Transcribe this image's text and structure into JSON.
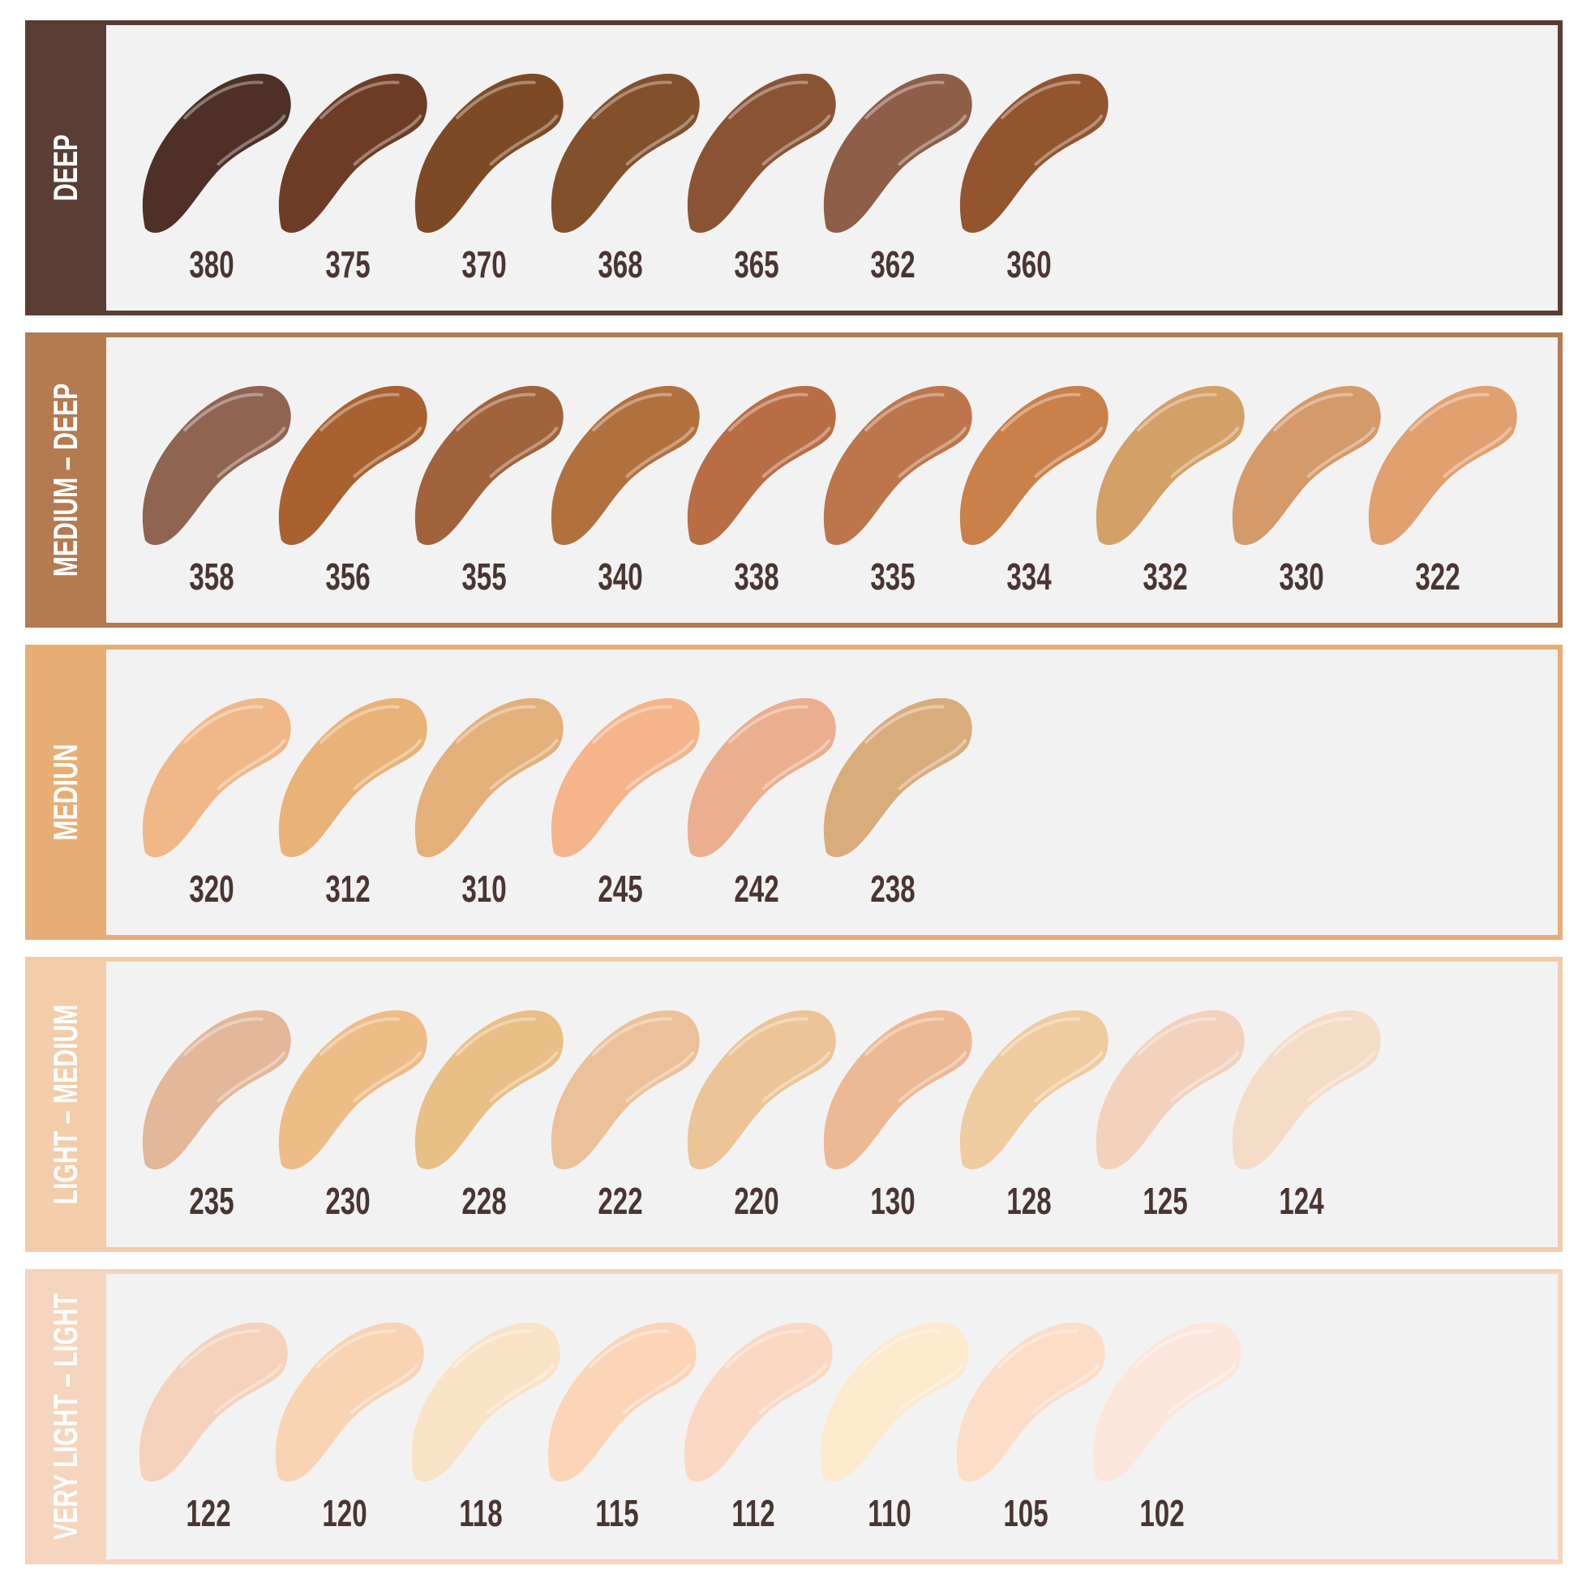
{
  "groups": [
    {
      "label": "DEEP",
      "color": "#5a3e33",
      "shades": [
        {
          "code": "380",
          "color": "#4e3026"
        },
        {
          "code": "375",
          "color": "#6e3c26"
        },
        {
          "code": "370",
          "color": "#7e4a26"
        },
        {
          "code": "368",
          "color": "#83502c"
        },
        {
          "code": "365",
          "color": "#8a5434"
        },
        {
          "code": "362",
          "color": "#8e5e48"
        },
        {
          "code": "360",
          "color": "#93552e"
        }
      ]
    },
    {
      "label": "MEDIUM – DEEP",
      "color": "#b47a50",
      "shades": [
        {
          "code": "358",
          "color": "#8f6450"
        },
        {
          "code": "356",
          "color": "#a8612f"
        },
        {
          "code": "355",
          "color": "#a0633c"
        },
        {
          "code": "340",
          "color": "#b1713f"
        },
        {
          "code": "338",
          "color": "#b96d45"
        },
        {
          "code": "335",
          "color": "#bd764c"
        },
        {
          "code": "334",
          "color": "#c98049"
        },
        {
          "code": "332",
          "color": "#d3a068"
        },
        {
          "code": "330",
          "color": "#d49a6a"
        },
        {
          "code": "322",
          "color": "#e1a070"
        }
      ]
    },
    {
      "label": "MEDIUN",
      "color": "#e6ae74",
      "shades": [
        {
          "code": "320",
          "color": "#f0b889"
        },
        {
          "code": "312",
          "color": "#e9b277"
        },
        {
          "code": "310",
          "color": "#e3b07b"
        },
        {
          "code": "245",
          "color": "#f5b48a"
        },
        {
          "code": "242",
          "color": "#ebae8e"
        },
        {
          "code": "238",
          "color": "#d9ac7c"
        }
      ]
    },
    {
      "label": "LIGHT – MEDIUM",
      "color": "#f3cca9",
      "shades": [
        {
          "code": "235",
          "color": "#e2b79a"
        },
        {
          "code": "230",
          "color": "#eebc87"
        },
        {
          "code": "228",
          "color": "#e8bf86"
        },
        {
          "code": "222",
          "color": "#ebc199"
        },
        {
          "code": "220",
          "color": "#ebc497"
        },
        {
          "code": "130",
          "color": "#edb994"
        },
        {
          "code": "128",
          "color": "#efcba0"
        },
        {
          "code": "125",
          "color": "#f2d2bc"
        },
        {
          "code": "124",
          "color": "#f5dcc6"
        }
      ]
    },
    {
      "label": "VERY LIGHT – LIGHT",
      "color": "#f5d5bd",
      "shades": [
        {
          "code": "122",
          "color": "#f4d2bb"
        },
        {
          "code": "120",
          "color": "#f8d3b4"
        },
        {
          "code": "118",
          "color": "#fae2c6"
        },
        {
          "code": "115",
          "color": "#fcd4b8"
        },
        {
          "code": "112",
          "color": "#fbd8c4"
        },
        {
          "code": "110",
          "color": "#fde9cc"
        },
        {
          "code": "105",
          "color": "#fcddc8"
        },
        {
          "code": "102",
          "color": "#fce6dc"
        }
      ]
    }
  ]
}
